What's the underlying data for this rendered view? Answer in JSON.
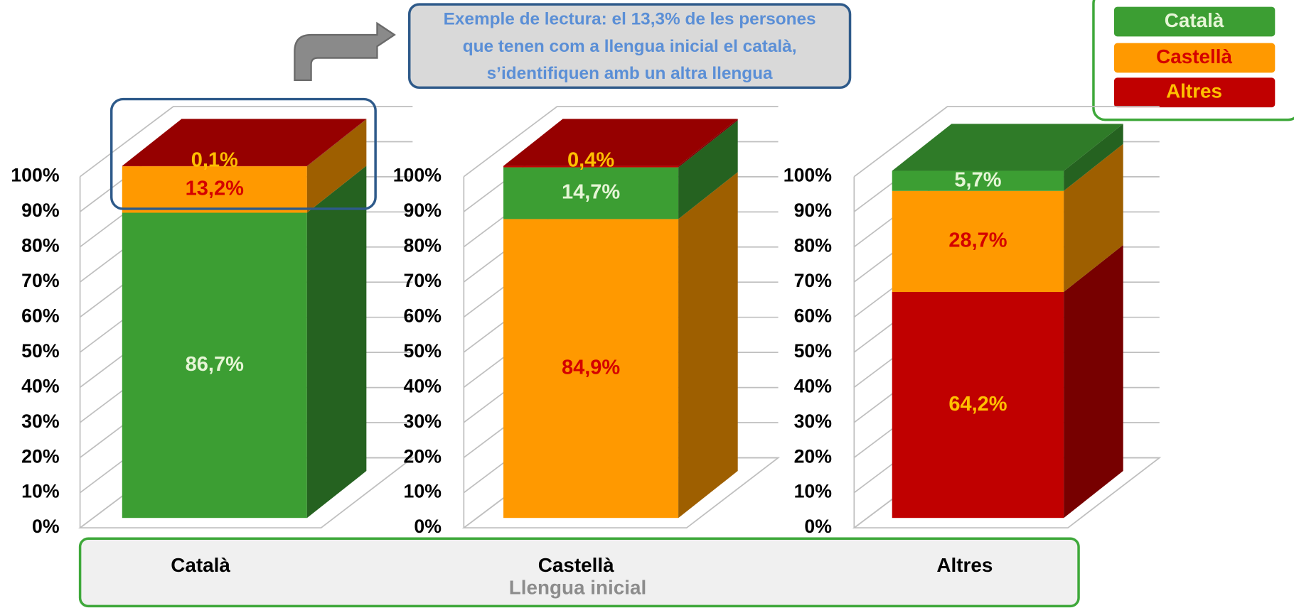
{
  "chart_data": [
    {
      "type": "bar",
      "categories": [
        "Català"
      ],
      "series": [
        {
          "name": "Català",
          "color": "#3c9e33",
          "label_color": "#e6f5d6",
          "values": [
            86.7
          ],
          "value_labels": [
            "86,7%"
          ]
        },
        {
          "name": "Castellà",
          "color": "#ff9900",
          "label_color": "#d40000",
          "values": [
            13.2
          ],
          "value_labels": [
            "13,2%"
          ]
        },
        {
          "name": "Altres",
          "color": "#c00000",
          "label_color": "#ffc000",
          "values": [
            0.1
          ],
          "value_labels": [
            "0,1%"
          ]
        }
      ],
      "ylim": [
        0,
        100
      ],
      "yticks": [
        {
          "value": 0,
          "label": "0%"
        },
        {
          "value": 10,
          "label": "10%"
        },
        {
          "value": 20,
          "label": "20%"
        },
        {
          "value": 30,
          "label": "30%"
        },
        {
          "value": 40,
          "label": "40%"
        },
        {
          "value": 50,
          "label": "50%"
        },
        {
          "value": 60,
          "label": "60%"
        },
        {
          "value": 70,
          "label": "70%"
        },
        {
          "value": 80,
          "label": "80%"
        },
        {
          "value": 90,
          "label": "90%"
        },
        {
          "value": 100,
          "label": "100%"
        }
      ],
      "grid": true
    },
    {
      "type": "bar",
      "categories": [
        "Castellà"
      ],
      "series": [
        {
          "name": "Castellà",
          "color": "#ff9900",
          "label_color": "#d40000",
          "values": [
            84.9
          ],
          "value_labels": [
            "84,9%"
          ]
        },
        {
          "name": "Català",
          "color": "#3c9e33",
          "label_color": "#e6f5d6",
          "values": [
            14.7
          ],
          "value_labels": [
            "14,7%"
          ]
        },
        {
          "name": "Altres",
          "color": "#c00000",
          "label_color": "#ffc000",
          "values": [
            0.4
          ],
          "value_labels": [
            "0,4%"
          ]
        }
      ],
      "ylim": [
        0,
        100
      ],
      "yticks": [
        {
          "value": 0,
          "label": "0%"
        },
        {
          "value": 10,
          "label": "10%"
        },
        {
          "value": 20,
          "label": "20%"
        },
        {
          "value": 30,
          "label": "30%"
        },
        {
          "value": 40,
          "label": "40%"
        },
        {
          "value": 50,
          "label": "50%"
        },
        {
          "value": 60,
          "label": "60%"
        },
        {
          "value": 70,
          "label": "70%"
        },
        {
          "value": 80,
          "label": "80%"
        },
        {
          "value": 90,
          "label": "90%"
        },
        {
          "value": 100,
          "label": "100%"
        }
      ],
      "grid": true
    },
    {
      "type": "bar",
      "categories": [
        "Altres"
      ],
      "series": [
        {
          "name": "Altres",
          "color": "#c00000",
          "label_color": "#ffc000",
          "values": [
            64.2
          ],
          "value_labels": [
            "64,2%"
          ]
        },
        {
          "name": "Castellà",
          "color": "#ff9900",
          "label_color": "#d40000",
          "values": [
            28.7
          ],
          "value_labels": [
            "28,7%"
          ]
        },
        {
          "name": "Català",
          "color": "#3c9e33",
          "label_color": "#e6f5d6",
          "values": [
            5.7
          ],
          "value_labels": [
            "5,7%"
          ]
        }
      ],
      "ylim": [
        0,
        100
      ],
      "yticks": [
        {
          "value": 0,
          "label": "0%"
        },
        {
          "value": 10,
          "label": "10%"
        },
        {
          "value": 20,
          "label": "20%"
        },
        {
          "value": 30,
          "label": "30%"
        },
        {
          "value": 40,
          "label": "40%"
        },
        {
          "value": 50,
          "label": "50%"
        },
        {
          "value": 60,
          "label": "60%"
        },
        {
          "value": 70,
          "label": "70%"
        },
        {
          "value": 80,
          "label": "80%"
        },
        {
          "value": 90,
          "label": "90%"
        },
        {
          "value": 100,
          "label": "100%"
        }
      ],
      "grid": true
    }
  ],
  "xlabel": "Llengua inicial",
  "annotation": [
    "Exemple de lectura: el 13,3% de les persones",
    "que tenen com a llengua inicial el català,",
    "s’identifiquen amb un altra llengua"
  ]
}
